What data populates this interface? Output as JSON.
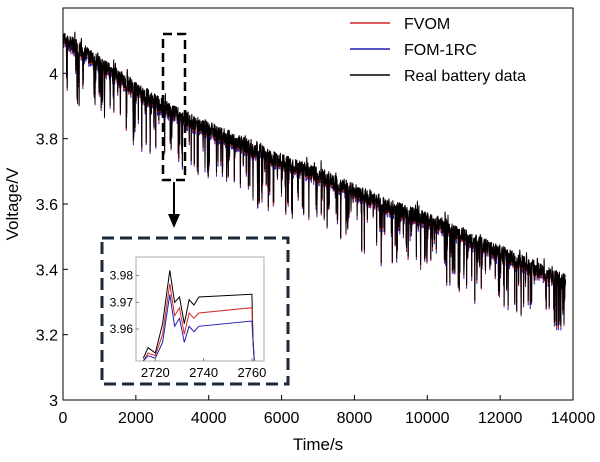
{
  "chart_data": [
    {
      "type": "line",
      "xlabel": "Time/s",
      "ylabel": "Voltage/V",
      "xlim": [
        0,
        14000
      ],
      "ylim": [
        3.0,
        4.2
      ],
      "xticks": [
        0,
        2000,
        4000,
        6000,
        8000,
        10000,
        12000,
        14000
      ],
      "yticks": [
        3.0,
        3.2,
        3.4,
        3.6,
        3.8,
        4.0
      ],
      "ytick_labels": [
        "3",
        "3.2",
        "3.4",
        "3.6",
        "3.8",
        "4"
      ],
      "grid": false,
      "legend_position": "top-right",
      "series": [
        {
          "name": "FVOM",
          "color": "#d62728"
        },
        {
          "name": "FOM-1RC",
          "color": "#1f1fb4"
        },
        {
          "name": "Real battery data",
          "color": "#000000"
        }
      ],
      "trend": {
        "x": [
          0,
          1000,
          2000,
          3000,
          4000,
          5000,
          6000,
          7000,
          8000,
          9000,
          10000,
          11000,
          12000,
          13000,
          13800
        ],
        "y": [
          4.11,
          4.03,
          3.95,
          3.88,
          3.83,
          3.78,
          3.73,
          3.69,
          3.64,
          3.59,
          3.55,
          3.5,
          3.45,
          3.4,
          3.36
        ]
      },
      "spike_depth": 0.12
    },
    {
      "type": "line",
      "role": "inset",
      "xlim": [
        2712,
        2765
      ],
      "ylim": [
        3.948,
        3.987
      ],
      "xticks": [
        2720,
        2740,
        2760
      ],
      "yticks": [
        3.96,
        3.97,
        3.98
      ],
      "series": [
        {
          "name": "Real battery data",
          "color": "#000000",
          "x": [
            2715,
            2717,
            2720,
            2723,
            2726,
            2728,
            2730,
            2732,
            2734,
            2736,
            2738,
            2760,
            2760.5,
            2761
          ],
          "y": [
            3.949,
            3.953,
            3.951,
            3.962,
            3.982,
            3.97,
            3.972,
            3.962,
            3.971,
            3.969,
            3.972,
            3.973,
            3.955,
            3.948
          ]
        },
        {
          "name": "FVOM",
          "color": "#d62728",
          "x": [
            2715,
            2717,
            2720,
            2723,
            2726,
            2728,
            2730,
            2732,
            2734,
            2736,
            2738,
            2760,
            2760.5,
            2761
          ],
          "y": [
            3.948,
            3.951,
            3.95,
            3.958,
            3.977,
            3.965,
            3.968,
            3.958,
            3.966,
            3.964,
            3.966,
            3.968,
            3.955,
            3.948
          ]
        },
        {
          "name": "FOM-1RC",
          "color": "#1f1fb4",
          "x": [
            2715,
            2717,
            2720,
            2723,
            2726,
            2728,
            2730,
            2732,
            2734,
            2736,
            2738,
            2760,
            2760.5,
            2761
          ],
          "y": [
            3.948,
            3.95,
            3.949,
            3.955,
            3.973,
            3.961,
            3.964,
            3.955,
            3.961,
            3.959,
            3.961,
            3.963,
            3.955,
            3.948
          ]
        }
      ]
    }
  ]
}
